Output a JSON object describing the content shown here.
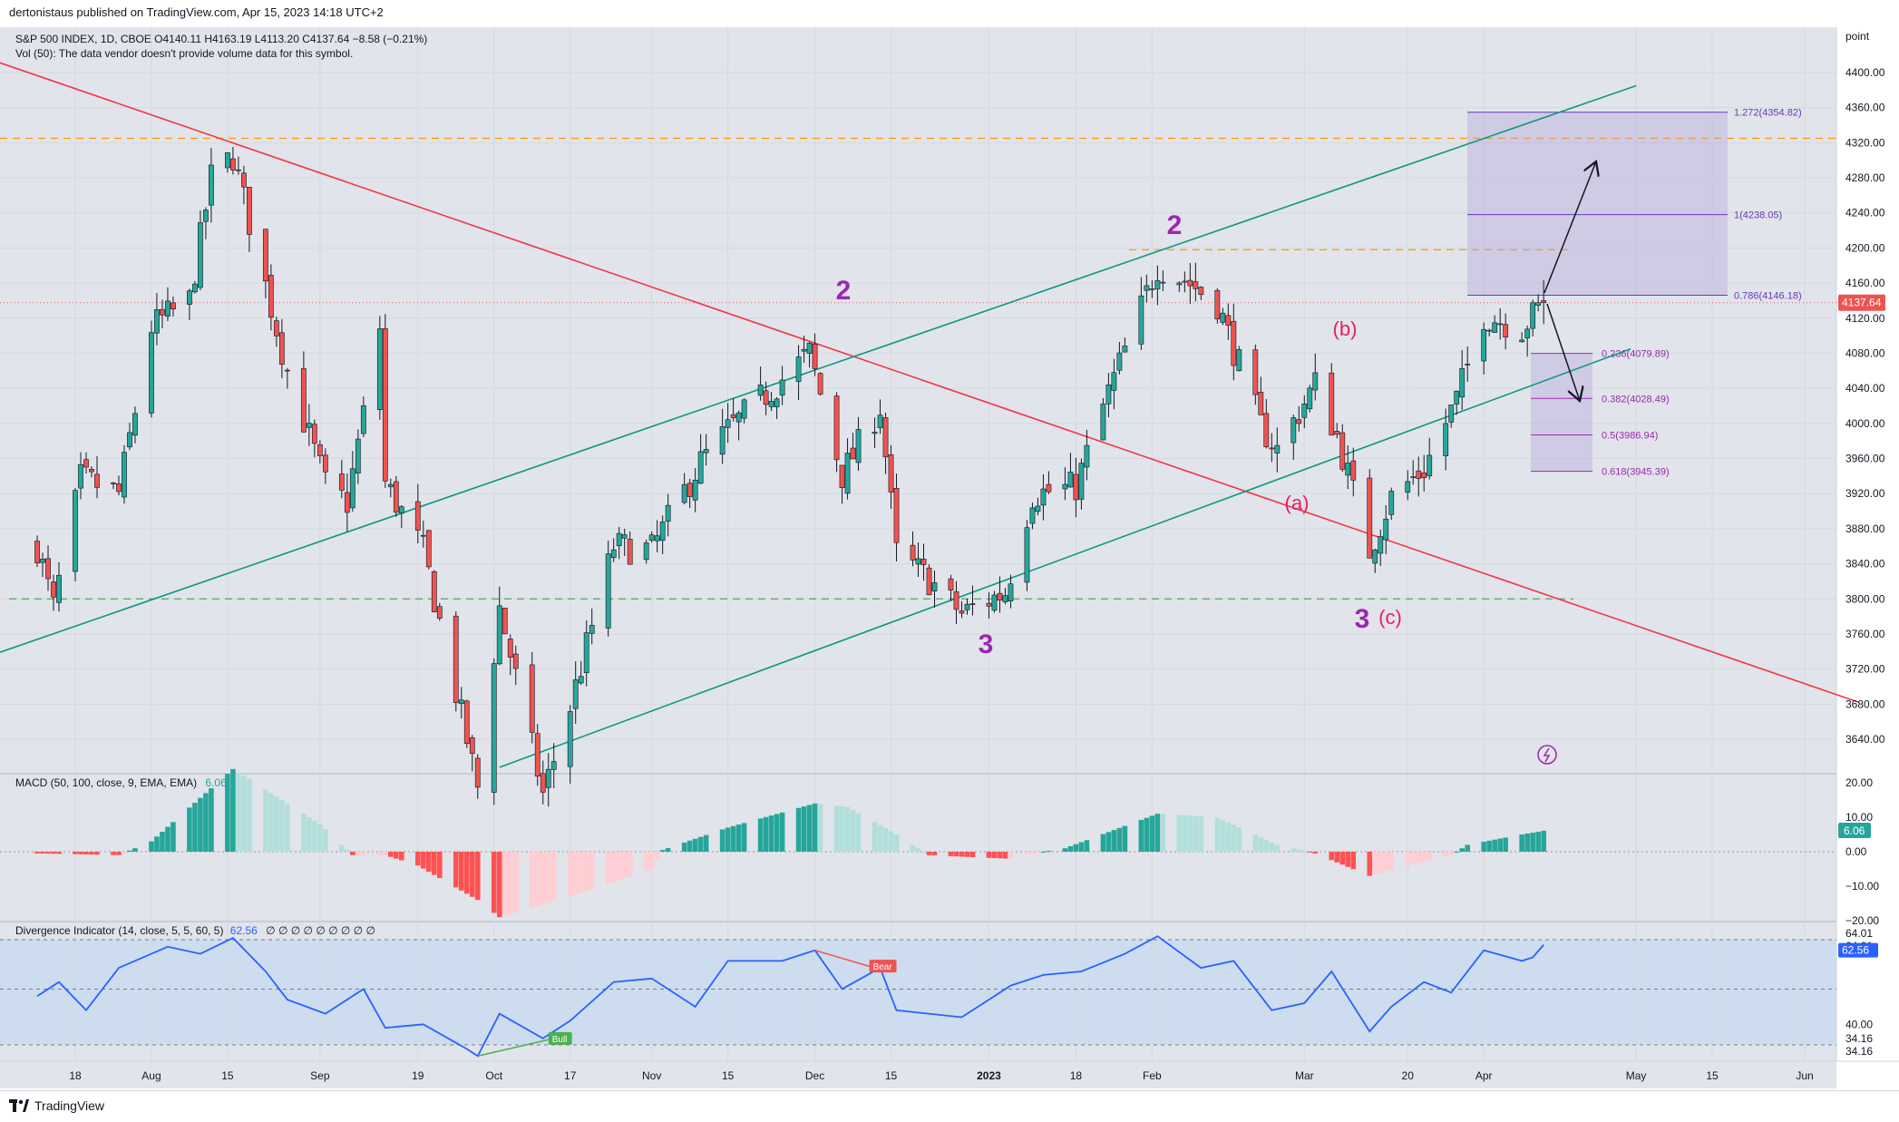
{
  "header": {
    "published_line": "dertonistaus published on TradingView.com, Apr 15, 2023 14:18 UTC+2"
  },
  "legend": {
    "symbol_line": "S&P 500 INDEX, 1D, CBOE  O4140.11  H4163.19  L4113.20  C4137.64  −8.58 (−0.21%)",
    "vol_line": "Vol (50): The data vendor doesn't provide volume data for this symbol.",
    "macd_title": "MACD (50, 100, close, 9, EMA, EMA)",
    "macd_value": "6.06",
    "div_title": "Divergence Indicator (14, close, 5, 5, 60, 5)",
    "div_value": "62.56",
    "div_empty_marks": "∅ ∅ ∅ ∅ ∅ ∅ ∅ ∅ ∅"
  },
  "footer": {
    "brand": "TradingView"
  },
  "price_axis": {
    "unit_label": "point",
    "ticks": [
      "4400.00",
      "4360.00",
      "4320.00",
      "4280.00",
      "4240.00",
      "4200.00",
      "4160.00",
      "4120.00",
      "4080.00",
      "4040.00",
      "4000.00",
      "3960.00",
      "3920.00",
      "3880.00",
      "3840.00",
      "3800.00",
      "3760.00",
      "3720.00",
      "3680.00",
      "3640.00"
    ],
    "last_price_label": "4137.64"
  },
  "macd_axis": {
    "ticks": [
      "20.00",
      "10.00",
      "0.00",
      "−10.00",
      "−20.00"
    ],
    "value_label": "6.06"
  },
  "div_axis": {
    "ticks": [
      "64.01",
      "64.01",
      "62.56",
      "40.00",
      "34.16",
      "34.16"
    ]
  },
  "time_axis": {
    "ticks": [
      "18",
      "Aug",
      "15",
      "Sep",
      "19",
      "Oct",
      "17",
      "Nov",
      "15",
      "Dec",
      "15",
      "2023",
      "18",
      "Feb",
      "Mar",
      "20",
      "Apr",
      "May",
      "15",
      "Jun"
    ]
  },
  "annotations": {
    "wave_labels": [
      "2",
      "3",
      "2",
      "3"
    ],
    "corrective_labels": [
      "(b)",
      "(a)",
      "(c)"
    ],
    "fib_extension": [
      "1.272(4354.82)",
      "1(4238.05)",
      "0.786(4146.18)"
    ],
    "fib_retracement": [
      "0.236(4079.89)",
      "0.382(4028.49)",
      "0.5(3986.94)",
      "0.618(3945.39)"
    ],
    "div_signals": [
      "Bear",
      "Bull"
    ]
  },
  "colors": {
    "bull": "#26a69a",
    "bear": "#ef5350",
    "macd_pos_strong": "#26a69a",
    "macd_pos_weak": "#b2dfdb",
    "macd_neg_strong": "#ff5252",
    "macd_neg_weak": "#ffcdd2",
    "trend_red": "#f23645",
    "channel_green": "#089981",
    "wave_purple": "#9c27b0",
    "corr_pink": "#e91e63",
    "fib_box": "#b39ddb",
    "div_line": "#2962ff",
    "orange_level": "#ff9800",
    "green_level": "#4caf50"
  },
  "chart_data": {
    "type": "candlestick",
    "title": "S&P 500 INDEX, 1D, CBOE",
    "ylabel": "point",
    "ylim": [
      3610,
      4420
    ],
    "last": {
      "open": 4140.11,
      "high": 4163.19,
      "low": 4113.2,
      "close": 4137.64,
      "change": -8.58,
      "change_pct": -0.21
    },
    "horizontal_levels": [
      4325,
      4198,
      3800
    ],
    "fib_levels": [
      4354.82,
      4238.05,
      4146.18,
      4079.89,
      4028.49,
      3986.94,
      3945.39
    ],
    "price_path": [
      [
        "2022-07-11",
        3860
      ],
      [
        "2022-07-14",
        3790
      ],
      [
        "2022-07-19",
        3937
      ],
      [
        "2022-07-26",
        3920
      ],
      [
        "2022-08-01",
        4110
      ],
      [
        "2022-08-08",
        4140
      ],
      [
        "2022-08-12",
        4280
      ],
      [
        "2022-08-16",
        4305
      ],
      [
        "2022-08-19",
        4230
      ],
      [
        "2022-08-26",
        4060
      ],
      [
        "2022-09-02",
        3930
      ],
      [
        "2022-09-06",
        3910
      ],
      [
        "2022-09-12",
        4110
      ],
      [
        "2022-09-13",
        3932
      ],
      [
        "2022-09-20",
        3855
      ],
      [
        "2022-09-30",
        3585
      ],
      [
        "2022-10-04",
        3790
      ],
      [
        "2022-10-12",
        3577
      ],
      [
        "2022-10-17",
        3677
      ],
      [
        "2022-10-25",
        3860
      ],
      [
        "2022-11-01",
        3856
      ],
      [
        "2022-11-10",
        3956
      ],
      [
        "2022-11-15",
        3992
      ],
      [
        "2022-11-30",
        4080
      ],
      [
        "2022-12-06",
        3941
      ],
      [
        "2022-12-13",
        4019
      ],
      [
        "2022-12-16",
        3852
      ],
      [
        "2022-12-22",
        3822
      ],
      [
        "2022-12-28",
        3783
      ],
      [
        "2023-01-05",
        3808
      ],
      [
        "2023-01-10",
        3919
      ],
      [
        "2023-01-18",
        3928
      ],
      [
        "2023-01-23",
        4019
      ],
      [
        "2023-02-02",
        4180
      ],
      [
        "2023-02-07",
        4164
      ],
      [
        "2023-02-13",
        4137
      ],
      [
        "2023-02-21",
        3997
      ],
      [
        "2023-02-24",
        3970
      ],
      [
        "2023-03-03",
        4045
      ],
      [
        "2023-03-07",
        3986
      ],
      [
        "2023-03-13",
        3855
      ],
      [
        "2023-03-17",
        3916
      ],
      [
        "2023-03-23",
        3948
      ],
      [
        "2023-03-29",
        4027
      ],
      [
        "2023-04-03",
        4124
      ],
      [
        "2023-04-10",
        4109
      ],
      [
        "2023-04-14",
        4137
      ]
    ],
    "macd_ylim": [
      -22,
      24
    ],
    "macd_last": 6.06,
    "divergence_ylim": [
      30,
      68
    ],
    "divergence_last": 62.56,
    "divergence_levels": [
      64.01,
      34.16
    ]
  }
}
